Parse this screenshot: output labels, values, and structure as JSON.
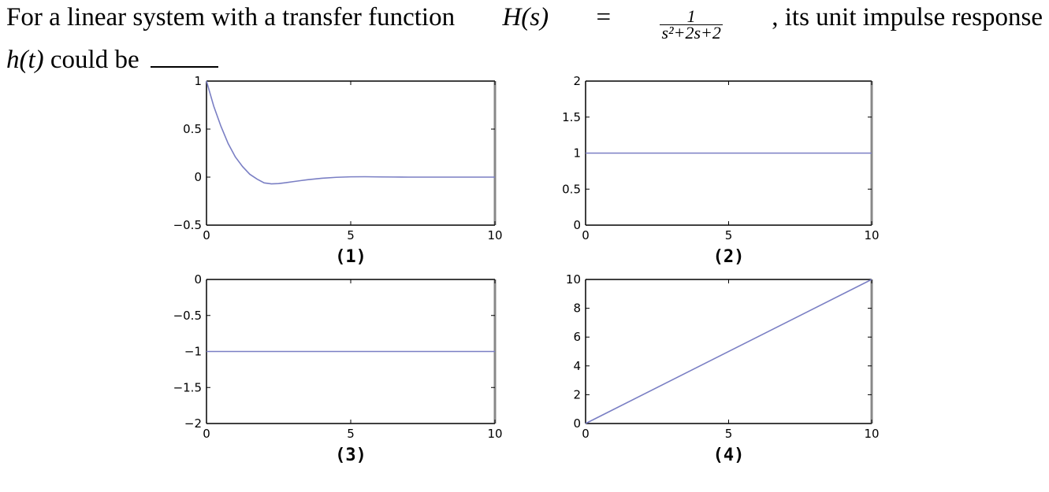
{
  "question": {
    "intro": "For a linear system with a transfer function",
    "func_name": "H(s)",
    "equals": "=",
    "tf_numerator": "1",
    "tf_denominator": "s²+2s+2",
    "after_fraction": ", its unit impulse response",
    "response_var": "h(t)",
    "tail": "could be"
  },
  "colors": {
    "series": "#7a7fc4",
    "axes": "#000000",
    "right_border": "#888888"
  },
  "chart_data": [
    {
      "type": "line",
      "caption": "(1)",
      "xlim": [
        0,
        10
      ],
      "ylim": [
        -0.5,
        1
      ],
      "xticks": [
        0,
        5,
        10
      ],
      "xtick_labels": [
        "0",
        "5",
        "10"
      ],
      "yticks": [
        -0.5,
        0,
        0.5,
        1
      ],
      "ytick_labels": [
        "−0.5",
        "0",
        "0.5",
        "1"
      ],
      "series": [
        {
          "x": [
            0,
            0.25,
            0.5,
            0.75,
            1,
            1.25,
            1.5,
            1.75,
            2,
            2.25,
            2.5,
            2.75,
            3,
            3.5,
            4,
            4.5,
            5,
            5.5,
            6,
            6.5,
            7,
            8,
            9,
            10
          ],
          "y": [
            1,
            0.74,
            0.53,
            0.35,
            0.21,
            0.11,
            0.03,
            -0.02,
            -0.06,
            -0.07,
            -0.067,
            -0.058,
            -0.047,
            -0.027,
            -0.012,
            -0.002,
            0.003,
            0.004,
            0.002,
            0.001,
            0,
            0,
            0,
            0
          ]
        }
      ]
    },
    {
      "type": "line",
      "caption": "(2)",
      "xlim": [
        0,
        10
      ],
      "ylim": [
        0,
        2
      ],
      "xticks": [
        0,
        5,
        10
      ],
      "xtick_labels": [
        "0",
        "5",
        "10"
      ],
      "yticks": [
        0,
        0.5,
        1,
        1.5,
        2
      ],
      "ytick_labels": [
        "0",
        "0.5",
        "1",
        "1.5",
        "2"
      ],
      "series": [
        {
          "x": [
            0,
            10
          ],
          "y": [
            1,
            1
          ]
        }
      ]
    },
    {
      "type": "line",
      "caption": "(3)",
      "xlim": [
        0,
        10
      ],
      "ylim": [
        -2,
        0
      ],
      "xticks": [
        0,
        5,
        10
      ],
      "xtick_labels": [
        "0",
        "5",
        "10"
      ],
      "yticks": [
        -2,
        -1.5,
        -1,
        -0.5,
        0
      ],
      "ytick_labels": [
        "−2",
        "−1.5",
        "−1",
        "−0.5",
        "0"
      ],
      "series": [
        {
          "x": [
            0,
            10
          ],
          "y": [
            -1,
            -1
          ]
        }
      ]
    },
    {
      "type": "line",
      "caption": "(4)",
      "xlim": [
        0,
        10
      ],
      "ylim": [
        0,
        10
      ],
      "xticks": [
        0,
        5,
        10
      ],
      "xtick_labels": [
        "0",
        "5",
        "10"
      ],
      "yticks": [
        0,
        2,
        4,
        6,
        8,
        10
      ],
      "ytick_labels": [
        "0",
        "2",
        "4",
        "6",
        "8",
        "10"
      ],
      "series": [
        {
          "x": [
            0,
            10
          ],
          "y": [
            0,
            10
          ]
        }
      ]
    }
  ]
}
